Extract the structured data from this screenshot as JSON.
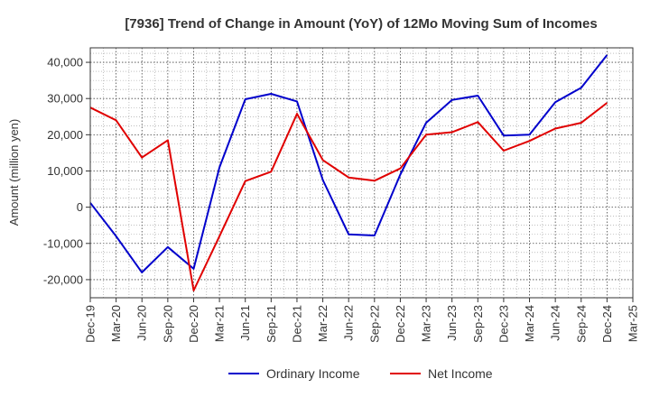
{
  "chart_data": {
    "type": "line",
    "title": "[7936]  Trend of Change in Amount (YoY) of 12Mo Moving Sum of Incomes",
    "ylabel": "Amount (million yen)",
    "xlabel": "",
    "x_ticks": [
      "Dec-19",
      "Mar-20",
      "Jun-20",
      "Sep-20",
      "Dec-20",
      "Mar-21",
      "Jun-21",
      "Sep-21",
      "Dec-21",
      "Mar-22",
      "Jun-22",
      "Sep-22",
      "Dec-22",
      "Mar-23",
      "Jun-23",
      "Sep-23",
      "Dec-23",
      "Mar-24",
      "Jun-24",
      "Sep-24",
      "Dec-24",
      "Mar-25"
    ],
    "y_ticks": [
      40000,
      30000,
      20000,
      10000,
      0,
      -10000,
      -20000
    ],
    "y_tick_labels": [
      "40,000",
      "30,000",
      "20,000",
      "10,000",
      "0",
      "-10,000",
      "-20,000"
    ],
    "ylim": [
      -25000,
      44000
    ],
    "grid": true,
    "legend_position": "bottom",
    "series": [
      {
        "name": "Ordinary Income",
        "color": "#0000cc",
        "values": [
          1200,
          -8000,
          -18000,
          -11000,
          -17000,
          11000,
          29800,
          31300,
          29200,
          7500,
          -7500,
          -7800,
          9000,
          23300,
          29600,
          30800,
          19800,
          20000,
          29000,
          33000,
          42000,
          null
        ]
      },
      {
        "name": "Net Income",
        "color": "#e00000",
        "values": [
          27500,
          24000,
          13700,
          18500,
          -23000,
          -8000,
          7200,
          9800,
          25800,
          13000,
          8200,
          7300,
          10700,
          20000,
          20700,
          23500,
          15600,
          18300,
          21700,
          23300,
          28800,
          null
        ]
      }
    ]
  }
}
